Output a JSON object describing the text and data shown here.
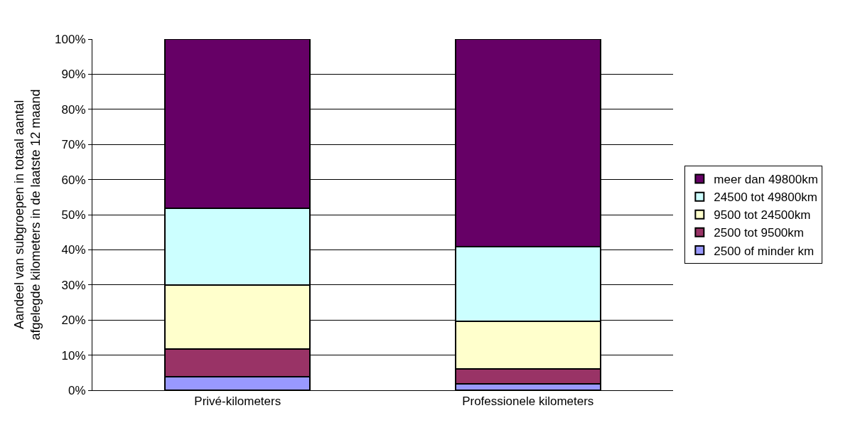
{
  "chart_data": {
    "type": "bar",
    "stacked": true,
    "ylabel": "Aandeel van subgroepen in totaal aantal\nafgelegde kilometers in de laatste 12 maand",
    "categories": [
      "Privé-kilometers",
      "Professionele kilometers"
    ],
    "series": [
      {
        "name": "2500 of minder km",
        "color": "#9999ff",
        "values": [
          3.9,
          1.8
        ]
      },
      {
        "name": "2500 tot 9500km",
        "color": "#993366",
        "values": [
          7.9,
          4.3
        ]
      },
      {
        "name": "9500 tot 24500km",
        "color": "#ffffcc",
        "values": [
          18.2,
          13.5
        ]
      },
      {
        "name": "24500 tot 49800km",
        "color": "#ccffff",
        "values": [
          21.8,
          21.2
        ]
      },
      {
        "name": "meer dan 49800km",
        "color": "#660066",
        "values": [
          48.2,
          59.2
        ]
      }
    ],
    "ylim": [
      0,
      100
    ],
    "yticks": [
      {
        "value": 0,
        "label": "0%"
      },
      {
        "value": 10,
        "label": "10%"
      },
      {
        "value": 20,
        "label": "20%"
      },
      {
        "value": 30,
        "label": "30%"
      },
      {
        "value": 40,
        "label": "40%"
      },
      {
        "value": 50,
        "label": "50%"
      },
      {
        "value": 60,
        "label": "60%"
      },
      {
        "value": 70,
        "label": "70%"
      },
      {
        "value": 80,
        "label": "80%"
      },
      {
        "value": 90,
        "label": "90%"
      },
      {
        "value": 100,
        "label": "100%"
      }
    ],
    "grid": "y",
    "legend": "right"
  }
}
